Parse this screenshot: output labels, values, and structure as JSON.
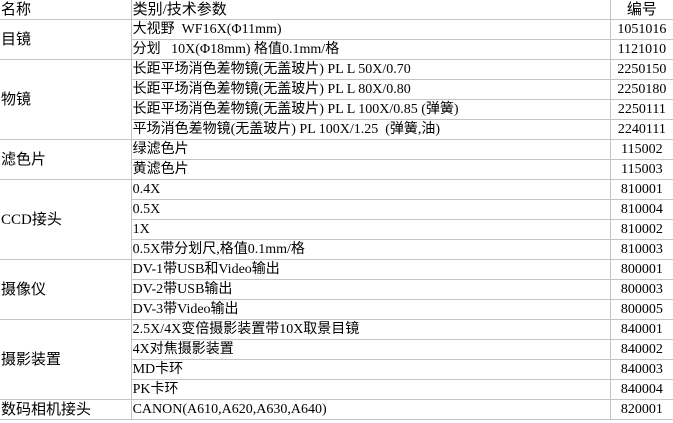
{
  "header": {
    "name": "名称",
    "spec": "类别/技术参数",
    "code": "编号"
  },
  "groups": [
    {
      "name": "目镜",
      "items": [
        {
          "spec": "大视野  WF16X(Φ11mm)",
          "code": "1051016"
        },
        {
          "spec": "分划   10X(Φ18mm) 格值0.1mm/格",
          "code": "1121010"
        }
      ]
    },
    {
      "name": "物镜",
      "items": [
        {
          "spec": "长距平场消色差物镜(无盖玻片) PL L 50X/0.70",
          "code": "2250150"
        },
        {
          "spec": "长距平场消色差物镜(无盖玻片) PL L 80X/0.80",
          "code": "2250180"
        },
        {
          "spec": "长距平场消色差物镜(无盖玻片) PL L 100X/0.85 (弹簧)",
          "code": "2250111"
        },
        {
          "spec": "平场消色差物镜(无盖玻片) PL 100X/1.25  (弹簧,油)",
          "code": "2240111"
        }
      ]
    },
    {
      "name": "滤色片",
      "items": [
        {
          "spec": "绿滤色片",
          "code": "115002"
        },
        {
          "spec": "黄滤色片",
          "code": "115003"
        }
      ]
    },
    {
      "name": "CCD接头",
      "items": [
        {
          "spec": "0.4X",
          "code": "810001"
        },
        {
          "spec": "0.5X",
          "code": "810004"
        },
        {
          "spec": "1X",
          "code": "810002"
        },
        {
          "spec": "0.5X带分划尺,格值0.1mm/格",
          "code": "810003"
        }
      ]
    },
    {
      "name": "摄像仪",
      "items": [
        {
          "spec": "DV-1带USB和Video输出",
          "code": "800001"
        },
        {
          "spec": "DV-2带USB输出",
          "code": "800003"
        },
        {
          "spec": "DV-3带Video输出",
          "code": "800005"
        }
      ]
    },
    {
      "name": "摄影装置",
      "items": [
        {
          "spec": "2.5X/4X变倍摄影装置带10X取景目镜",
          "code": "840001"
        },
        {
          "spec": "4X对焦摄影装置",
          "code": "840002"
        },
        {
          "spec": "MD卡环",
          "code": "840003"
        },
        {
          "spec": "PK卡环",
          "code": "840004"
        }
      ]
    },
    {
      "name": "数码相机接头",
      "items": [
        {
          "spec": "CANON(A610,A620,A630,A640)",
          "code": "820001"
        }
      ]
    }
  ]
}
